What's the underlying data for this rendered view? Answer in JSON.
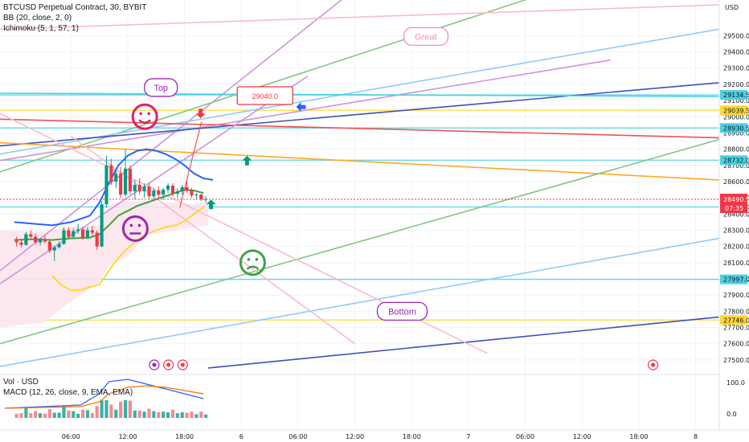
{
  "header": {
    "symbol_line": "BTCUSD Perpetual Contract, 30, BYBIT",
    "bb_line": "BB (20, close, 2, 0)",
    "ichimoku_line": "Ichimoku (5, 1, 57, 1)",
    "vol_line": "Vol · USD",
    "macd_line": "MACD (12, 26, close, 9, EMA, EMA)"
  },
  "chart_data": {
    "type": "line",
    "title": "",
    "y_axis_unit": "USD",
    "ylim": [
      27440,
      29720
    ],
    "price_ticks": [
      29500.0,
      29400.0,
      29300.0,
      29200.0,
      29100.0,
      29000.0,
      28900.0,
      28800.0,
      28700.0,
      28600.0,
      28500.0,
      28400.0,
      28300.0,
      28200.0,
      28100.0,
      28000.0,
      27900.0,
      27800.0,
      27700.0,
      27600.0,
      27500.0
    ],
    "price_labels": [
      {
        "value": 29134.5,
        "text": "29134.5",
        "color": "#4dd0e1"
      },
      {
        "value": 29039.5,
        "text": "29039.5",
        "color": "#fdd835"
      },
      {
        "value": 28930.5,
        "text": "28930.5",
        "color": "#4dd0e1"
      },
      {
        "value": 28732.0,
        "text": "28732.0",
        "color": "#4dd0e1"
      },
      {
        "value": 28444.0,
        "text": "28444.0",
        "color": "#4dd0e1"
      },
      {
        "value": 27997.0,
        "text": "27997.0",
        "color": "#4dd0e1"
      },
      {
        "value": 27746.0,
        "text": "27746.0",
        "color": "#fdd835"
      }
    ],
    "last_price": {
      "value": 28490.5,
      "text": "28490.5",
      "countdown": "07:35",
      "color": "#f23645"
    },
    "time_ticks": [
      {
        "t": 6,
        "label": "06:00"
      },
      {
        "t": 12,
        "label": "12:00"
      },
      {
        "t": 18,
        "label": "18:00"
      },
      {
        "t": 24,
        "label": "6"
      },
      {
        "t": 30,
        "label": "06:00"
      },
      {
        "t": 36,
        "label": "12:00"
      },
      {
        "t": 42,
        "label": "18:00"
      },
      {
        "t": 48,
        "label": "7"
      },
      {
        "t": 54,
        "label": "06:00"
      },
      {
        "t": 60,
        "label": "12:00"
      },
      {
        "t": 66,
        "label": "18:00"
      },
      {
        "t": 72,
        "label": "8"
      }
    ],
    "x_range_hours": [
      -1.5,
      74.5
    ],
    "candles": [
      [
        0.25,
        28235,
        28260,
        28200,
        28225
      ],
      [
        0.75,
        28225,
        28245,
        28195,
        28210
      ],
      [
        1.25,
        28210,
        28290,
        28205,
        28275
      ],
      [
        1.75,
        28275,
        28300,
        28250,
        28260
      ],
      [
        2.25,
        28260,
        28280,
        28215,
        28225
      ],
      [
        2.75,
        28225,
        28255,
        28205,
        28240
      ],
      [
        3.25,
        28240,
        28270,
        28220,
        28230
      ],
      [
        3.75,
        28230,
        28240,
        28160,
        28175
      ],
      [
        4.25,
        28175,
        28205,
        28110,
        28195
      ],
      [
        4.75,
        28195,
        28230,
        28185,
        28215
      ],
      [
        5.25,
        28215,
        28320,
        28210,
        28300
      ],
      [
        5.75,
        28300,
        28320,
        28250,
        28260
      ],
      [
        6.25,
        28260,
        28310,
        28255,
        28295
      ],
      [
        6.75,
        28295,
        28340,
        28280,
        28305
      ],
      [
        7.25,
        28305,
        28320,
        28240,
        28255
      ],
      [
        7.75,
        28255,
        28320,
        28245,
        28300
      ],
      [
        8.25,
        28300,
        28330,
        28270,
        28285
      ],
      [
        8.75,
        28285,
        28300,
        28180,
        28200
      ],
      [
        9.25,
        28200,
        28480,
        28195,
        28460
      ],
      [
        9.75,
        28460,
        28760,
        28440,
        28700
      ],
      [
        10.25,
        28700,
        28740,
        28580,
        28600
      ],
      [
        10.75,
        28600,
        28680,
        28560,
        28650
      ],
      [
        11.25,
        28650,
        28690,
        28500,
        28520
      ],
      [
        11.75,
        28520,
        28800,
        28510,
        28680
      ],
      [
        12.25,
        28680,
        28700,
        28520,
        28540
      ],
      [
        12.75,
        28540,
        28610,
        28490,
        28580
      ],
      [
        13.25,
        28580,
        28620,
        28520,
        28540
      ],
      [
        13.75,
        28540,
        28590,
        28500,
        28570
      ],
      [
        14.25,
        28570,
        28590,
        28490,
        28510
      ],
      [
        14.75,
        28510,
        28560,
        28480,
        28545
      ],
      [
        15.25,
        28545,
        28570,
        28500,
        28520
      ],
      [
        15.75,
        28520,
        28560,
        28490,
        28550
      ],
      [
        16.25,
        28550,
        28590,
        28530,
        28575
      ],
      [
        16.75,
        28575,
        28590,
        28510,
        28525
      ],
      [
        17.25,
        28525,
        28560,
        28500,
        28540
      ],
      [
        17.75,
        28540,
        28580,
        28520,
        28565
      ],
      [
        18.25,
        28565,
        28600,
        28530,
        28545
      ],
      [
        18.75,
        28545,
        28560,
        28500,
        28515
      ],
      [
        19.25,
        28515,
        28530,
        28490,
        28520
      ],
      [
        19.75,
        28520,
        28525,
        28480,
        28490
      ],
      [
        20.25,
        28490,
        28510,
        28470,
        28492
      ]
    ],
    "series": [
      {
        "color": "#2962ff",
        "points": [
          [
            0,
            28350
          ],
          [
            2,
            28340
          ],
          [
            4,
            28330
          ],
          [
            6,
            28350
          ],
          [
            8,
            28390
          ],
          [
            9,
            28470
          ],
          [
            10,
            28590
          ],
          [
            11,
            28700
          ],
          [
            12,
            28760
          ],
          [
            13,
            28790
          ],
          [
            14,
            28800
          ],
          [
            15,
            28790
          ],
          [
            16,
            28770
          ],
          [
            17,
            28740
          ],
          [
            18,
            28700
          ],
          [
            19,
            28650
          ],
          [
            20,
            28620
          ],
          [
            21,
            28610
          ]
        ]
      },
      {
        "color": "#43a047",
        "points": [
          [
            0,
            28240
          ],
          [
            2,
            28245
          ],
          [
            4,
            28240
          ],
          [
            6,
            28250
          ],
          [
            8,
            28255
          ],
          [
            9,
            28275
          ],
          [
            10,
            28330
          ],
          [
            11,
            28390
          ],
          [
            12,
            28420
          ],
          [
            13,
            28450
          ],
          [
            14,
            28470
          ],
          [
            15,
            28490
          ],
          [
            16,
            28510
          ],
          [
            17,
            28530
          ],
          [
            18,
            28550
          ],
          [
            19,
            28545
          ],
          [
            20,
            28530
          ]
        ]
      },
      {
        "color": "#fdd835",
        "points": [
          [
            4,
            28020
          ],
          [
            5,
            27960
          ],
          [
            6,
            27930
          ],
          [
            7,
            27930
          ],
          [
            8,
            27950
          ],
          [
            9,
            27965
          ],
          [
            10,
            28050
          ],
          [
            11,
            28130
          ],
          [
            12,
            28190
          ],
          [
            13,
            28240
          ],
          [
            14,
            28275
          ],
          [
            15,
            28300
          ],
          [
            16,
            28320
          ],
          [
            17,
            28330
          ],
          [
            18,
            28355
          ],
          [
            19,
            28400
          ],
          [
            20,
            28440
          ]
        ]
      }
    ],
    "trend_lines": [
      {
        "color": "#ce93d8",
        "from": [
          -1.5,
          28050
        ],
        "to": [
          35,
          29740
        ]
      },
      {
        "color": "#81c784",
        "from": [
          -1.5,
          28660
        ],
        "to": [
          55,
          29740
        ]
      },
      {
        "color": "#90caf9",
        "from": [
          -1.5,
          28770
        ],
        "to": [
          74.5,
          29540
        ]
      },
      {
        "color": "#ce93d8",
        "from": [
          -1.5,
          28730
        ],
        "to": [
          63,
          29350
        ]
      },
      {
        "color": "#3f51b5",
        "from": [
          -1.5,
          28820
        ],
        "to": [
          74.5,
          29210
        ]
      },
      {
        "color": "#ef5350",
        "from": [
          -1.5,
          28985
        ],
        "to": [
          74.5,
          28870
        ]
      },
      {
        "color": "#ffa726",
        "from": [
          -1.5,
          28840
        ],
        "to": [
          74.5,
          28610
        ]
      },
      {
        "color": "#81c784",
        "from": [
          -1.5,
          27600
        ],
        "to": [
          74.5,
          28860
        ]
      },
      {
        "color": "#90caf9",
        "from": [
          -1.5,
          27460
        ],
        "to": [
          74.5,
          28250
        ]
      },
      {
        "color": "#ce93d8",
        "from": [
          -1.5,
          27970
        ],
        "to": [
          31,
          29250
        ]
      },
      {
        "color": "#3f51b5",
        "from": [
          20.5,
          27450
        ],
        "to": [
          74.5,
          27765
        ]
      },
      {
        "color": "#f8bbd0",
        "from": [
          -1.5,
          29020
        ],
        "to": [
          50,
          27540
        ]
      },
      {
        "color": "#f8bbd0",
        "from": [
          6,
          28880
        ],
        "to": [
          36,
          27600
        ]
      },
      {
        "color": "#f8bbd0",
        "from": [
          -1.5,
          29540
        ],
        "to": [
          74.5,
          29690
        ]
      },
      {
        "color": "#4dd0e1",
        "from": [
          -1.5,
          29145
        ],
        "to": [
          74.5,
          29125
        ]
      }
    ],
    "labels": [
      {
        "text": "Top",
        "at": [
          15.5,
          29180
        ]
      },
      {
        "text": "Great",
        "at": [
          43.5,
          29495
        ]
      },
      {
        "text": "Bottom",
        "at": [
          41,
          27800
        ]
      },
      {
        "text": "29040.0",
        "at": [
          26.5,
          29130
        ]
      }
    ]
  },
  "icons": {
    "smiley": "happy-face-icon",
    "neutral": "neutral-face-icon",
    "sad": "sad-face-icon"
  }
}
